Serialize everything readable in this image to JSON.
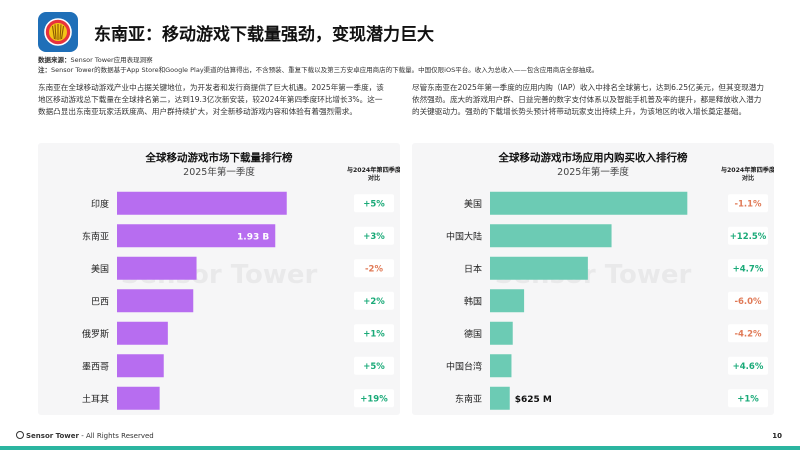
{
  "header": {
    "title": "东南亚：移动游戏下载量强劲，变现潜力巨大"
  },
  "source": {
    "label": "数据来源：",
    "text": "Sensor Tower应用表现洞察",
    "note_label": "注：",
    "note_text": "Sensor Tower的数据基于App Store和Google Play渠道的估算得出，不含预装、重复下载以及第三方安卓应用商店的下载量。中国仅限iOS平台。收入为总收入——包含应用商店全部抽成。"
  },
  "paragraphs": {
    "left": "东南亚在全球移动游戏产业中占据关键地位，为开发者和发行商提供了巨大机遇。2025年第一季度，该地区移动游戏总下载量在全球排名第二，达到19.3亿次新安装，较2024年第四季度环比增长3%。这一数据凸显出东南亚玩家活跃度高、用户群持续扩大，对全新移动游戏内容和体验有着强烈需求。",
    "right": "尽管东南亚在2025年第一季度的应用内购（IAP）收入中排名全球第七，达到6.25亿美元，但其变现潜力依然强劲。庞大的游戏用户群、日益完善的数字支付体系以及智能手机普及率的提升，都是释放收入潜力的关键驱动力。强劲的下载增长势头预计将带动玩家支出持续上升，为该地区的收入增长奠定基础。"
  },
  "watermark": "Sensor Tower",
  "colors": {
    "downloads_bar": "#b76df0",
    "revenue_bar": "#6ccbb4",
    "positive": "#1aaa78",
    "negative": "#e07a57"
  },
  "chart_data": [
    {
      "type": "bar",
      "orientation": "horizontal",
      "title": "全球移动游戏市场下载量排行榜",
      "subtitle": "2025年第一季度",
      "change_header": "与2024年第四季度对比",
      "categories": [
        "印度",
        "东南亚",
        "美国",
        "巴西",
        "俄罗斯",
        "墨西哥",
        "土耳其"
      ],
      "values": [
        2.07,
        1.93,
        0.97,
        0.93,
        0.62,
        0.57,
        0.52
      ],
      "unit": "B",
      "data_label": {
        "index": 1,
        "text": "1.93 B"
      },
      "changes": [
        "+5%",
        "+3%",
        "-2%",
        "+2%",
        "+1%",
        "+5%",
        "+19%"
      ],
      "xlim": [
        0,
        2.5
      ],
      "xticks": [
        "0B",
        "0.5B",
        "1B",
        "1.5B",
        "2B",
        "2.5B"
      ],
      "grid": false
    },
    {
      "type": "bar",
      "orientation": "horizontal",
      "title": "全球移动游戏市场应用内购买收入排行榜",
      "subtitle": "2025年第一季度",
      "change_header": "与2024年第四季度对比",
      "categories": [
        "美国",
        "中国大陆",
        "日本",
        "韩国",
        "德国",
        "中国台湾",
        "东南亚"
      ],
      "values": [
        6.25,
        3.85,
        3.1,
        1.08,
        0.72,
        0.68,
        0.625
      ],
      "unit": "$B",
      "data_label": {
        "index": 6,
        "text": "$625 M"
      },
      "changes": [
        "-1.1%",
        "+12.5%",
        "+4.7%",
        "-6.0%",
        "-4.2%",
        "+4.6%",
        "+1%"
      ],
      "xlim": [
        0,
        7
      ],
      "xticks": [
        "$0B",
        "$1B",
        "$2B",
        "$3B",
        "$4B",
        "$5B",
        "$6B",
        "$7B"
      ],
      "grid": false
    }
  ],
  "footer": {
    "brand": "Sensor Tower",
    "rights": " - All Rights Reserved",
    "page": "10"
  }
}
